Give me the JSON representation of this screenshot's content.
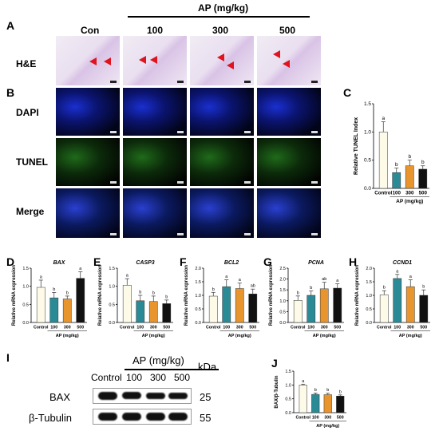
{
  "panels": {
    "A": "A",
    "B": "B",
    "C": "C",
    "D": "D",
    "E": "E",
    "F": "F",
    "G": "G",
    "H": "H",
    "I": "I",
    "J": "J"
  },
  "header": {
    "group": "AP (mg/kg)",
    "columns": [
      "Con",
      "100",
      "300",
      "500"
    ]
  },
  "row_labels": [
    "H&E",
    "DAPI",
    "TUNEL",
    "Merge"
  ],
  "colors": {
    "control": "#fdfbe8",
    "d100": "#2a8b96",
    "d300": "#e8952d",
    "d500": "#111111",
    "arrow": "#e0131f"
  },
  "chart_data": [
    {
      "panel": "C",
      "type": "bar",
      "ylabel": "Relative TUNEL Index",
      "xlabel": "AP (mg/kg)",
      "categories": [
        "Control",
        "100",
        "300",
        "500"
      ],
      "values": [
        1.0,
        0.28,
        0.4,
        0.34
      ],
      "errors": [
        0.18,
        0.08,
        0.1,
        0.06
      ],
      "letters": [
        "a",
        "b",
        "b",
        "b"
      ],
      "ylim": [
        0,
        1.5
      ],
      "yticks": [
        "0.0",
        "0.5",
        "1.0",
        "1.5"
      ]
    },
    {
      "panel": "D",
      "type": "bar",
      "gene": "BAX",
      "ylabel": "Relative mRNA expression",
      "xlabel": "AP (mg/kg)",
      "categories": [
        "Control",
        "100",
        "300",
        "500"
      ],
      "values": [
        0.97,
        0.68,
        0.65,
        1.22
      ],
      "errors": [
        0.2,
        0.15,
        0.08,
        0.18
      ],
      "letters": [
        "a",
        "b",
        "b",
        "a"
      ],
      "ylim": [
        0,
        1.5
      ],
      "yticks": [
        "0.0",
        "0.5",
        "1.0",
        "1.5"
      ]
    },
    {
      "panel": "E",
      "type": "bar",
      "gene": "CASP3",
      "ylabel": "Relative mRNA expression",
      "xlabel": "AP (mg/kg)",
      "categories": [
        "Control",
        "100",
        "300",
        "500"
      ],
      "values": [
        1.03,
        0.6,
        0.58,
        0.52
      ],
      "errors": [
        0.18,
        0.15,
        0.15,
        0.1
      ],
      "letters": [
        "a",
        "b",
        "b",
        "b"
      ],
      "ylim": [
        0,
        1.5
      ],
      "yticks": [
        "0.0",
        "0.5",
        "1.0",
        "1.5"
      ]
    },
    {
      "panel": "F",
      "type": "bar",
      "gene": "BCL2",
      "ylabel": "Relative mRNA expression",
      "xlabel": "AP (mg/kg)",
      "categories": [
        "Control",
        "100",
        "300",
        "500"
      ],
      "values": [
        0.97,
        1.32,
        1.25,
        1.05
      ],
      "errors": [
        0.14,
        0.25,
        0.2,
        0.18
      ],
      "letters": [
        "b",
        "a",
        "a",
        "ab"
      ],
      "ylim": [
        0,
        2.0
      ],
      "yticks": [
        "0.0",
        "0.5",
        "1.0",
        "1.5",
        "2.0"
      ]
    },
    {
      "panel": "G",
      "type": "bar",
      "gene": "PCNA",
      "ylabel": "Relative mRNA expression",
      "xlabel": "AP (mg/kg)",
      "categories": [
        "Control",
        "100",
        "300",
        "500"
      ],
      "values": [
        1.02,
        1.25,
        1.55,
        1.58
      ],
      "errors": [
        0.2,
        0.2,
        0.3,
        0.2
      ],
      "letters": [
        "b",
        "b",
        "ab",
        "a"
      ],
      "ylim": [
        0,
        2.5
      ],
      "yticks": [
        "0.0",
        "0.5",
        "1.0",
        "1.5",
        "2.0",
        "2.5"
      ]
    },
    {
      "panel": "H",
      "type": "bar",
      "gene": "CCND1",
      "ylabel": "Relative mRNA expression",
      "xlabel": "AP (mg/kg)",
      "categories": [
        "Control",
        "100",
        "300",
        "500"
      ],
      "values": [
        1.02,
        1.62,
        1.32,
        1.0
      ],
      "errors": [
        0.15,
        0.15,
        0.25,
        0.2
      ],
      "letters": [
        "b",
        "a",
        "a",
        "b"
      ],
      "ylim": [
        0,
        2.0
      ],
      "yticks": [
        "0.0",
        "0.5",
        "1.0",
        "1.5",
        "2.0"
      ]
    },
    {
      "panel": "J",
      "type": "bar",
      "ylabel": "BAX/β-Tubulin",
      "xlabel": "AP (mg/kg)",
      "categories": [
        "Control",
        "100",
        "300",
        "500"
      ],
      "values": [
        1.0,
        0.66,
        0.65,
        0.6
      ],
      "errors": [
        0.03,
        0.05,
        0.05,
        0.04
      ],
      "letters": [
        "a",
        "b",
        "b",
        "b"
      ],
      "ylim": [
        0,
        1.5
      ],
      "yticks": [
        "0.0",
        "0.5",
        "1.0",
        "1.5"
      ]
    }
  ],
  "western": {
    "header": "AP (mg/kg)",
    "columns": [
      "Control",
      "100",
      "300",
      "500"
    ],
    "kda_label": "kDa",
    "rows": [
      {
        "protein": "BAX",
        "kda": "25"
      },
      {
        "protein": "β-Tubulin",
        "kda": "55"
      }
    ]
  }
}
